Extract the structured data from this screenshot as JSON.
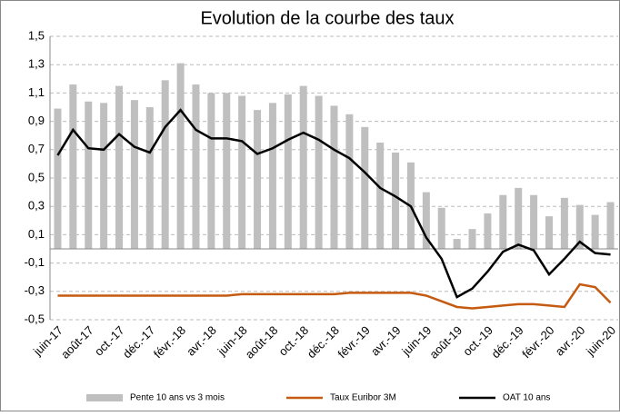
{
  "chart_data": {
    "type": "bar-line",
    "title": "Evolution de la courbe des taux",
    "categories": [
      "juin-17",
      null,
      "août-17",
      null,
      "oct.-17",
      null,
      "déc.-17",
      null,
      "févr.-18",
      null,
      "avr.-18",
      null,
      "juin-18",
      null,
      "août-18",
      null,
      "oct.-18",
      null,
      "déc.-18",
      null,
      "févr.-19",
      null,
      "avr.-19",
      null,
      "juin-19",
      null,
      "août-19",
      null,
      "oct.-19",
      null,
      "déc.-19",
      null,
      "févr.-20",
      null,
      "avr.-20",
      null,
      "juin-20"
    ],
    "series": [
      {
        "name": "Pente 10 ans vs 3 mois",
        "kind": "bar",
        "color": "#bfbfbf",
        "values": [
          0.99,
          1.16,
          1.04,
          1.03,
          1.15,
          1.05,
          1.0,
          1.19,
          1.31,
          1.16,
          1.1,
          1.1,
          1.08,
          0.98,
          1.03,
          1.09,
          1.15,
          1.08,
          1.01,
          0.95,
          0.86,
          0.75,
          0.68,
          0.61,
          0.4,
          0.29,
          0.07,
          0.14,
          0.25,
          0.38,
          0.43,
          0.38,
          0.23,
          0.36,
          0.31,
          0.24,
          0.33
        ]
      },
      {
        "name": "Taux Euribor 3M",
        "kind": "line",
        "color": "#c55a11",
        "values": [
          -0.33,
          -0.33,
          -0.33,
          -0.33,
          -0.33,
          -0.33,
          -0.33,
          -0.33,
          -0.33,
          -0.33,
          -0.33,
          -0.33,
          -0.32,
          -0.32,
          -0.32,
          -0.32,
          -0.32,
          -0.32,
          -0.32,
          -0.31,
          -0.31,
          -0.31,
          -0.31,
          -0.31,
          -0.33,
          -0.37,
          -0.41,
          -0.42,
          -0.41,
          -0.4,
          -0.39,
          -0.39,
          -0.4,
          -0.41,
          -0.25,
          -0.27,
          -0.38
        ]
      },
      {
        "name": "OAT 10 ans",
        "kind": "line",
        "color": "#000000",
        "values": [
          0.66,
          0.84,
          0.71,
          0.7,
          0.81,
          0.72,
          0.68,
          0.86,
          0.98,
          0.84,
          0.78,
          0.78,
          0.76,
          0.67,
          0.71,
          0.77,
          0.82,
          0.77,
          0.7,
          0.64,
          0.54,
          0.43,
          0.37,
          0.3,
          0.08,
          -0.07,
          -0.34,
          -0.28,
          -0.16,
          -0.02,
          0.03,
          -0.01,
          -0.18,
          -0.07,
          0.05,
          -0.03,
          -0.04
        ]
      }
    ],
    "ylim": [
      -0.5,
      1.5
    ],
    "yticks": [
      {
        "value": -0.5,
        "label": "-0,5"
      },
      {
        "value": -0.3,
        "label": "-0,3"
      },
      {
        "value": -0.1,
        "label": "-0,1"
      },
      {
        "value": 0.1,
        "label": "0,1"
      },
      {
        "value": 0.3,
        "label": "0,3"
      },
      {
        "value": 0.5,
        "label": "0,5"
      },
      {
        "value": 0.7,
        "label": "0,7"
      },
      {
        "value": 0.9,
        "label": "0,9"
      },
      {
        "value": 1.1,
        "label": "1,1"
      },
      {
        "value": 1.3,
        "label": "1,3"
      },
      {
        "value": 1.5,
        "label": "1,5"
      }
    ],
    "grid": true,
    "legend": "bottom"
  }
}
